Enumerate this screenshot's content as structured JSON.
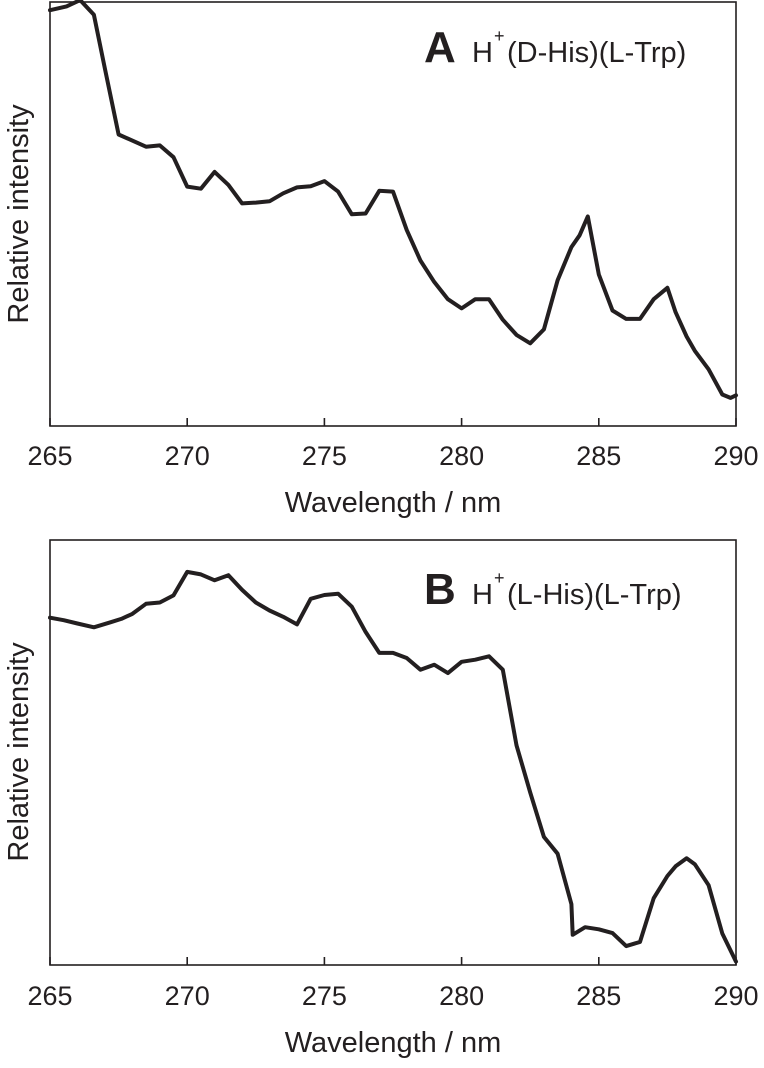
{
  "colors": {
    "ink": "#231f20",
    "background": "#ffffff"
  },
  "chart_data": [
    {
      "type": "line",
      "panel": "A",
      "label": {
        "ion": "H",
        "charge": "+",
        "rest": "(D-His)(L-Trp)"
      },
      "xlabel": "Wavelength / nm",
      "ylabel": "Relative intensity",
      "xlim": [
        265,
        290
      ],
      "ylim": [
        0,
        100
      ],
      "xticks": [
        "265",
        "270",
        "275",
        "280",
        "285",
        "290"
      ],
      "x": [
        265,
        265.6,
        266.1,
        266.6,
        267.0,
        267.5,
        268.5,
        269.0,
        269.5,
        270.0,
        270.5,
        271.0,
        271.5,
        272.0,
        272.5,
        273.0,
        273.5,
        274.0,
        274.5,
        275.0,
        275.5,
        276.0,
        276.5,
        277.0,
        277.5,
        278.0,
        278.5,
        279.0,
        279.5,
        280.0,
        280.5,
        281.0,
        281.5,
        282.0,
        282.5,
        283.0,
        283.5,
        284.0,
        284.3,
        284.6,
        285.0,
        285.5,
        286.0,
        286.5,
        287.0,
        287.5,
        287.8,
        288.2,
        288.5,
        289.0,
        289.5,
        289.8,
        290.0
      ],
      "y": [
        99.0,
        99.9,
        101.4,
        97.9,
        85.1,
        69.4,
        66.5,
        66.8,
        64.0,
        57.0,
        56.5,
        60.5,
        57.4,
        53.0,
        53.2,
        53.5,
        55.4,
        56.8,
        57.1,
        58.3,
        55.8,
        50.4,
        50.6,
        56.0,
        55.8,
        46.7,
        39.4,
        34.3,
        30.2,
        28.0,
        30.2,
        30.2,
        25.3,
        21.7,
        19.7,
        23.0,
        34.7,
        42.6,
        45.4,
        49.9,
        36.1,
        27.5,
        25.5,
        25.5,
        30.2,
        32.9,
        27.1,
        21.3,
        17.9,
        13.5,
        7.5,
        6.7,
        7.3
      ]
    },
    {
      "type": "line",
      "panel": "B",
      "label": {
        "ion": "H",
        "charge": "+",
        "rest": "(L-His)(L-Trp)"
      },
      "xlabel": "Wavelength / nm",
      "ylabel": "Relative intensity",
      "xlim": [
        265,
        290
      ],
      "ylim": [
        0,
        100
      ],
      "xticks": [
        "265",
        "270",
        "275",
        "280",
        "285",
        "290"
      ],
      "x": [
        265,
        265.5,
        266.0,
        266.6,
        267.2,
        267.6,
        268.0,
        268.5,
        269.0,
        269.5,
        270.0,
        270.5,
        271.0,
        271.5,
        272.0,
        272.5,
        273.0,
        273.5,
        274.0,
        274.5,
        275.0,
        275.5,
        276.0,
        276.5,
        277.0,
        277.5,
        278.0,
        278.5,
        279.0,
        279.5,
        280.0,
        280.5,
        281.0,
        281.5,
        282.0,
        282.5,
        283.0,
        283.5,
        284.0,
        284.05,
        284.5,
        285.0,
        285.5,
        286.0,
        286.5,
        287.0,
        287.5,
        287.8,
        288.2,
        288.5,
        289.0,
        289.5,
        290.0
      ],
      "y": [
        82.7,
        82.1,
        81.3,
        80.4,
        81.6,
        82.4,
        83.6,
        86.0,
        86.3,
        88.0,
        93.6,
        93.0,
        91.6,
        92.8,
        89.3,
        86.3,
        84.4,
        82.9,
        81.1,
        87.2,
        88.1,
        88.4,
        85.3,
        79.3,
        74.3,
        74.3,
        73.1,
        70.3,
        71.5,
        69.5,
        72.2,
        72.7,
        73.5,
        70.3,
        52.3,
        41.1,
        30.5,
        26.5,
        14.5,
        7.2,
        9.0,
        8.5,
        7.6,
        4.5,
        5.5,
        15.9,
        21.2,
        23.5,
        25.4,
        24.0,
        19.0,
        7.5,
        0.8
      ]
    }
  ]
}
